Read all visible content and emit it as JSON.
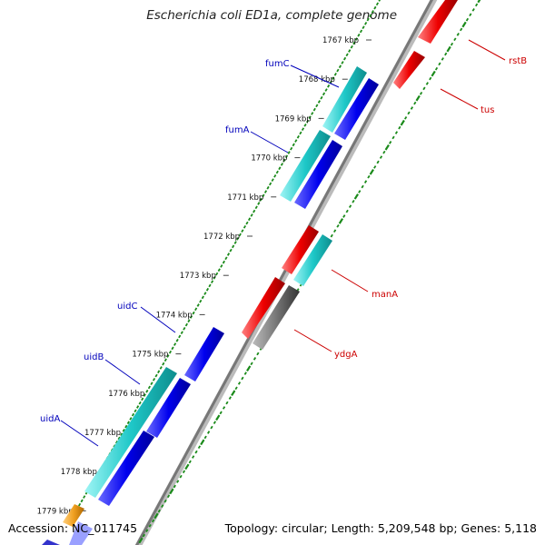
{
  "title": "Escherichia coli ED1a, complete genome",
  "footer": {
    "accession": "Accession: NC_011745",
    "summary": "Topology: circular; Length: 5,209,548 bp; Genes: 5,118"
  },
  "colors": {
    "forward_gene": "#0000ee",
    "forward_gene_alt": "#1ec8c8",
    "reverse_gene": "#ee0000",
    "reverse_gene_alt": "#1ec8c8",
    "pseudo_gene": "#777777",
    "orange_gene": "#f0a020",
    "backbone": "#888888",
    "ruler": "#1a8a1a",
    "label_forward": "#0000bb",
    "label_reverse": "#cc0000"
  },
  "ticks": [
    {
      "label": "1767 kbp"
    },
    {
      "label": "1768 kbp"
    },
    {
      "label": "1769 kbp"
    },
    {
      "label": "1770 kbp"
    },
    {
      "label": "1771 kbp"
    },
    {
      "label": "1772 kbp"
    },
    {
      "label": "1773 kbp"
    },
    {
      "label": "1774 kbp"
    },
    {
      "label": "1775 kbp"
    },
    {
      "label": "1776 kbp"
    },
    {
      "label": "1777 kbp"
    },
    {
      "label": "1778 kbp"
    },
    {
      "label": "1779 kbp"
    }
  ],
  "genes_forward": [
    {
      "name": "fumC"
    },
    {
      "name": "fumA"
    },
    {
      "name": "uidC"
    },
    {
      "name": "uidB"
    },
    {
      "name": "uidA"
    }
  ],
  "genes_reverse": [
    {
      "name": "rstB"
    },
    {
      "name": "tus"
    },
    {
      "name": "manA"
    },
    {
      "name": "ydgA"
    }
  ]
}
